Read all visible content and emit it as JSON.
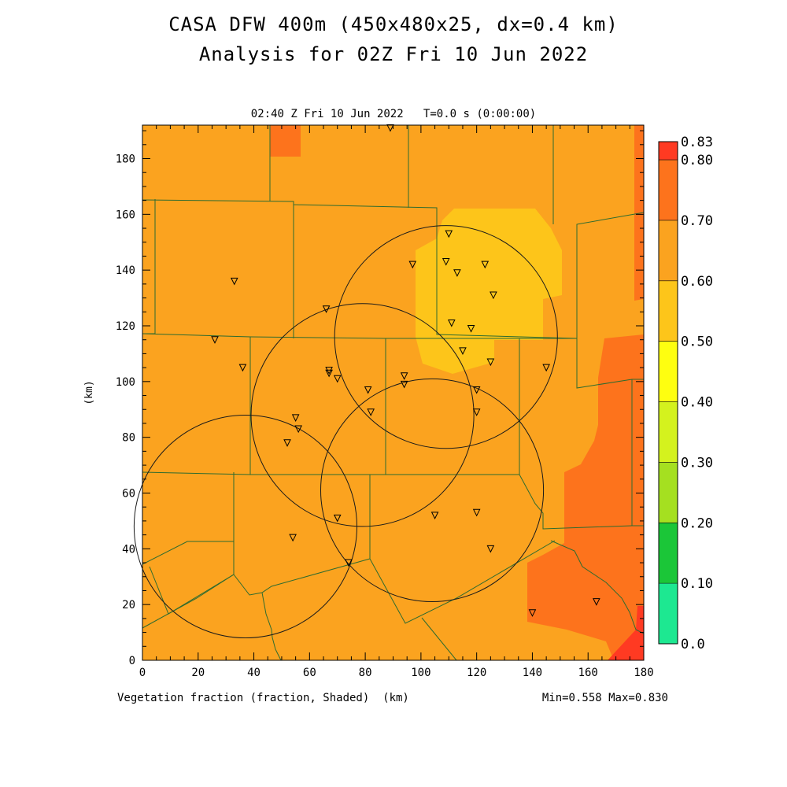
{
  "title_line1": "CASA DFW 400m (450x480x25, dx=0.4 km)",
  "title_line2": "Analysis for 02Z Fri 10 Jun 2022",
  "plot_time_label": "02:40 Z Fri 10 Jun 2022   T=0.0 s (0:00:00)",
  "field_label": "Vegetation fraction (fraction, Shaded)  (km)",
  "minmax_label": "Min=0.558 Max=0.830",
  "colors": {
    "band_050_060": "#fdc51a",
    "band_060_070": "#fba31f",
    "band_070_080": "#fd731c",
    "band_080_083": "#ff3a22",
    "boundary": "#2e6b2f",
    "radar_ring": "#1a1a1a"
  },
  "colorbar": {
    "labels": [
      "0.83",
      "0.80",
      "0.70",
      "0.60",
      "0.50",
      "0.40",
      "0.30",
      "0.20",
      "0.10",
      "0.0"
    ],
    "bands": [
      {
        "from": 0.8,
        "to": 0.83,
        "color": "#ff3a22"
      },
      {
        "from": 0.7,
        "to": 0.8,
        "color": "#fd731c"
      },
      {
        "from": 0.6,
        "to": 0.7,
        "color": "#fba31f"
      },
      {
        "from": 0.5,
        "to": 0.6,
        "color": "#fdc51a"
      },
      {
        "from": 0.4,
        "to": 0.5,
        "color": "#fefe10"
      },
      {
        "from": 0.3,
        "to": 0.4,
        "color": "#d4f21e"
      },
      {
        "from": 0.2,
        "to": 0.3,
        "color": "#a5e020"
      },
      {
        "from": 0.1,
        "to": 0.2,
        "color": "#1bc638"
      },
      {
        "from": 0.0,
        "to": 0.1,
        "color": "#1de891"
      }
    ]
  },
  "axes": {
    "x_range_km": [
      0,
      180
    ],
    "y_range_km": [
      0,
      192
    ],
    "x_ticks": [
      "0",
      "20",
      "40",
      "60",
      "80",
      "100",
      "120",
      "140",
      "160",
      "180"
    ],
    "y_ticks": [
      "0",
      "20",
      "40",
      "60",
      "80",
      "100",
      "120",
      "140",
      "160",
      "180"
    ],
    "y_label": "(km)"
  },
  "radars_km": [
    {
      "x": 37,
      "y": 48,
      "r": 40
    },
    {
      "x": 79,
      "y": 88,
      "r": 40
    },
    {
      "x": 104,
      "y": 61,
      "r": 40
    },
    {
      "x": 109,
      "y": 116,
      "r": 40
    }
  ],
  "stations_km": [
    [
      89,
      191
    ],
    [
      110,
      153
    ],
    [
      109,
      143
    ],
    [
      97,
      142
    ],
    [
      123,
      142
    ],
    [
      113,
      139
    ],
    [
      126,
      131
    ],
    [
      33,
      136
    ],
    [
      66,
      126
    ],
    [
      111,
      121
    ],
    [
      118,
      119
    ],
    [
      26,
      115
    ],
    [
      115,
      111
    ],
    [
      125,
      107
    ],
    [
      145,
      105
    ],
    [
      36,
      105
    ],
    [
      67,
      104
    ],
    [
      67,
      103
    ],
    [
      70,
      101
    ],
    [
      94,
      102
    ],
    [
      94,
      99
    ],
    [
      81,
      97
    ],
    [
      120,
      97
    ],
    [
      82,
      89
    ],
    [
      120,
      89
    ],
    [
      55,
      87
    ],
    [
      56,
      83
    ],
    [
      52,
      78
    ],
    [
      120,
      53
    ],
    [
      105,
      52
    ],
    [
      70,
      51
    ],
    [
      125,
      40
    ],
    [
      54,
      44
    ],
    [
      74,
      35
    ],
    [
      140,
      17
    ],
    [
      163,
      21
    ]
  ]
}
